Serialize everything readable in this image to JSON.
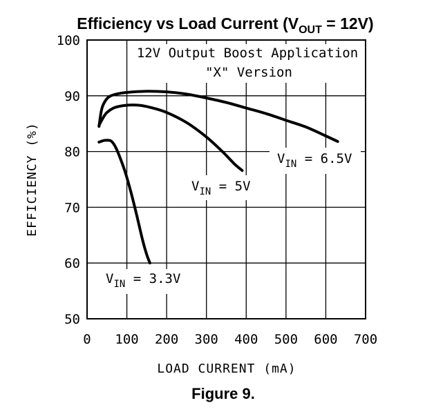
{
  "chart_data": {
    "type": "line",
    "title": {
      "main": "Efficiency vs Load Current (V",
      "sub": "OUT",
      "tail": " = 12V)"
    },
    "caption": "Figure 9.",
    "xlabel": "LOAD CURRENT (mA)",
    "ylabel": "EFFICIENCY (%)",
    "xlim": [
      0,
      700
    ],
    "ylim": [
      50,
      100
    ],
    "xticks": [
      0,
      100,
      200,
      300,
      400,
      500,
      600,
      700
    ],
    "yticks": [
      50,
      60,
      70,
      80,
      90,
      100
    ],
    "grid": true,
    "annotations": [
      {
        "id": "app-line1",
        "text": "12V Output Boost Application"
      },
      {
        "id": "app-line2",
        "text": "\"X\" Version"
      }
    ],
    "series": [
      {
        "name": "V_IN = 6.5V",
        "label": {
          "main": "V",
          "sub": "IN",
          "tail": " = 6.5V"
        },
        "x": [
          30,
          35,
          40,
          50,
          60,
          80,
          100,
          150,
          200,
          250,
          300,
          350,
          400,
          450,
          500,
          550,
          600,
          630
        ],
        "y": [
          84.5,
          87.0,
          88.3,
          89.5,
          90.0,
          90.4,
          90.6,
          90.8,
          90.7,
          90.3,
          89.6,
          88.8,
          87.8,
          86.8,
          85.6,
          84.4,
          82.8,
          81.8
        ]
      },
      {
        "name": "V_IN = 5V",
        "label": {
          "main": "V",
          "sub": "IN",
          "tail": " = 5V"
        },
        "x": [
          30,
          40,
          50,
          70,
          100,
          130,
          160,
          200,
          250,
          300,
          340,
          370,
          390
        ],
        "y": [
          84.7,
          86.0,
          87.0,
          87.9,
          88.3,
          88.3,
          87.9,
          87.0,
          85.2,
          82.6,
          80.0,
          77.8,
          76.6
        ]
      },
      {
        "name": "V_IN = 3.3V",
        "label": {
          "main": "V",
          "sub": "IN",
          "tail": " = 3.3V"
        },
        "x": [
          30,
          45,
          60,
          70,
          80,
          95,
          110,
          125,
          140,
          150,
          158
        ],
        "y": [
          81.7,
          82.0,
          81.9,
          81.0,
          79.4,
          76.5,
          72.8,
          68.5,
          64.0,
          61.5,
          60.0
        ]
      }
    ]
  }
}
